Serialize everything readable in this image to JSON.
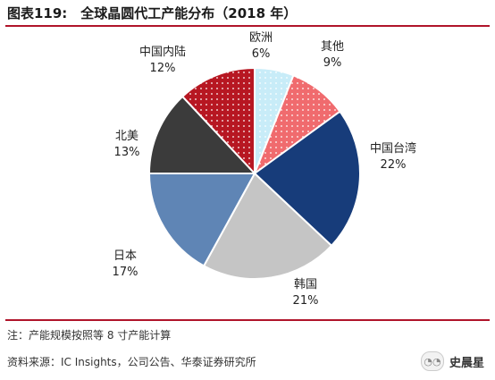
{
  "figure": {
    "title": "图表119:　全球晶圆代工产能分布（2018 年）",
    "note": "注：产能规模按照等 8 寸产能计算",
    "source": "资料来源：IC Insights，公司公告、华泰证券研究所",
    "brand": "史晨星",
    "brand_icon": "wechat-icon"
  },
  "colors": {
    "rule": "#b0142a",
    "欧洲": "#c8ecf8",
    "其他": "#f06b6e",
    "中国台湾": "#173c7a",
    "韩国": "#c5c5c5",
    "日本": "#5f85b5",
    "北美": "#3b3b3b",
    "中国内陆": "#b71722"
  },
  "chart_data": {
    "type": "pie",
    "title": "全球晶圆代工产能分布（2018 年）",
    "unit": "%",
    "slices": [
      {
        "label": "欧洲",
        "value": 6,
        "display": "6%",
        "pattern": "dots"
      },
      {
        "label": "其他",
        "value": 9,
        "display": "9%",
        "pattern": "dots"
      },
      {
        "label": "中国台湾",
        "value": 22,
        "display": "22%",
        "pattern": "solid"
      },
      {
        "label": "韩国",
        "value": 21,
        "display": "21%",
        "pattern": "solid"
      },
      {
        "label": "日本",
        "value": 17,
        "display": "17%",
        "pattern": "solid"
      },
      {
        "label": "北美",
        "value": 13,
        "display": "13%",
        "pattern": "solid"
      },
      {
        "label": "中国内陆",
        "value": 12,
        "display": "12%",
        "pattern": "dots"
      }
    ],
    "start": "12 o'clock",
    "direction": "clockwise",
    "legend": "none"
  }
}
